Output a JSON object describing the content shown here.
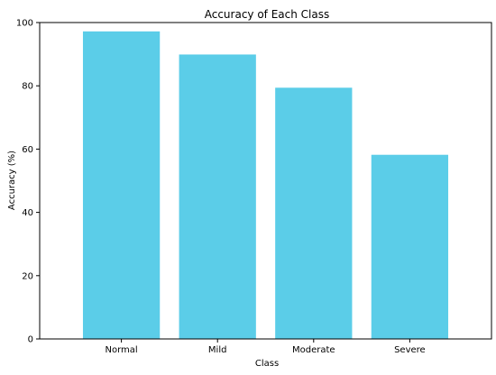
{
  "chart_data": {
    "type": "bar",
    "title": "Accuracy of Each Class",
    "xlabel": "Class",
    "ylabel": "Accuracy (%)",
    "categories": [
      "Normal",
      "Mild",
      "Moderate",
      "Severe"
    ],
    "values": [
      97.2,
      89.9,
      79.4,
      58.2
    ],
    "ylim": [
      0,
      100
    ],
    "yticks": [
      0,
      20,
      40,
      60,
      80,
      100
    ],
    "bar_color": "#5bcde8",
    "grid": false,
    "legend": "none"
  }
}
